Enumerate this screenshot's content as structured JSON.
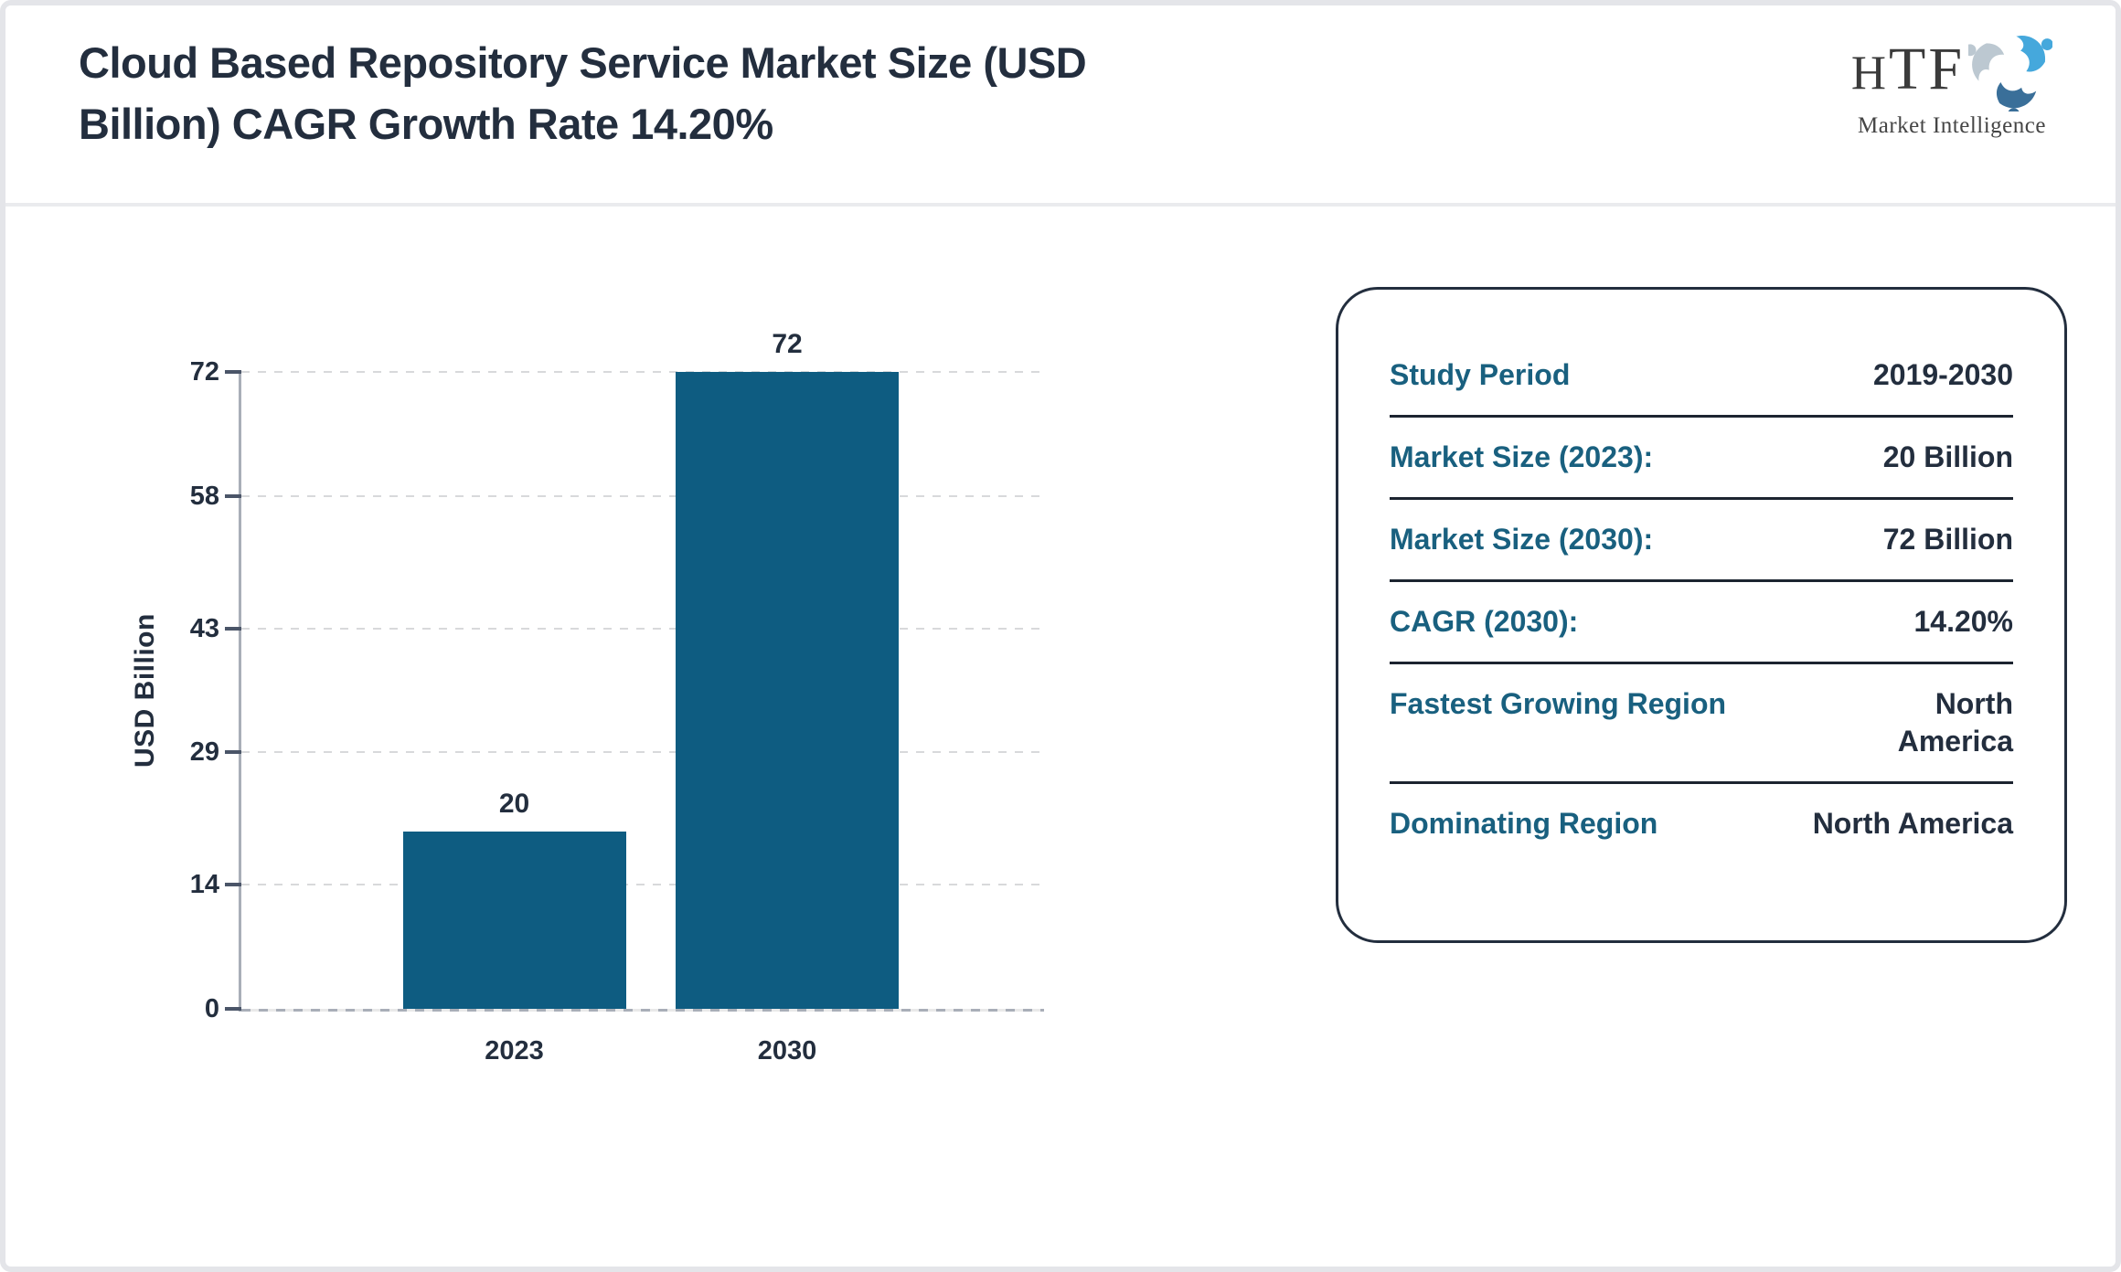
{
  "header": {
    "title": "Cloud Based Repository Service Market Size (USD Billion) CAGR Growth Rate 14.20%",
    "logo": {
      "name": "HTF",
      "tagline": "Market Intelligence"
    }
  },
  "chart_data": {
    "type": "bar",
    "title": "Cloud Based Repository Service Market Size (USD Billion) CAGR Growth Rate 14.20%",
    "categories": [
      "2023",
      "2030"
    ],
    "values": [
      20,
      72
    ],
    "value_labels": [
      "20",
      "72"
    ],
    "xlabel": "",
    "ylabel": "USD Billion",
    "yticks": [
      0,
      14,
      29,
      43,
      58,
      72
    ],
    "ylim": [
      0,
      72
    ],
    "grid": "horizontal-dashed",
    "legend": "none",
    "bar_color": "#0e5c81"
  },
  "info_card": {
    "rows": [
      {
        "label": "Study Period",
        "value": "2019-2030"
      },
      {
        "label": "Market Size (2023):",
        "value": "20 Billion"
      },
      {
        "label": "Market Size (2030):",
        "value": "72 Billion"
      },
      {
        "label": "CAGR (2030):",
        "value": "14.20%"
      },
      {
        "label": "Fastest Growing Region",
        "value": "North America",
        "value_wrap": true
      },
      {
        "label": "Dominating Region",
        "value": "North America"
      }
    ]
  },
  "colors": {
    "title_text": "#232e3e",
    "label_teal": "#19607f",
    "bar_fill": "#0e5c81",
    "axis_gray": "#a9aeb8",
    "gridline": "#d8d9db",
    "card_border": "#232e3e",
    "separator": "#1c2430",
    "page_border": "#e4e5e9"
  }
}
